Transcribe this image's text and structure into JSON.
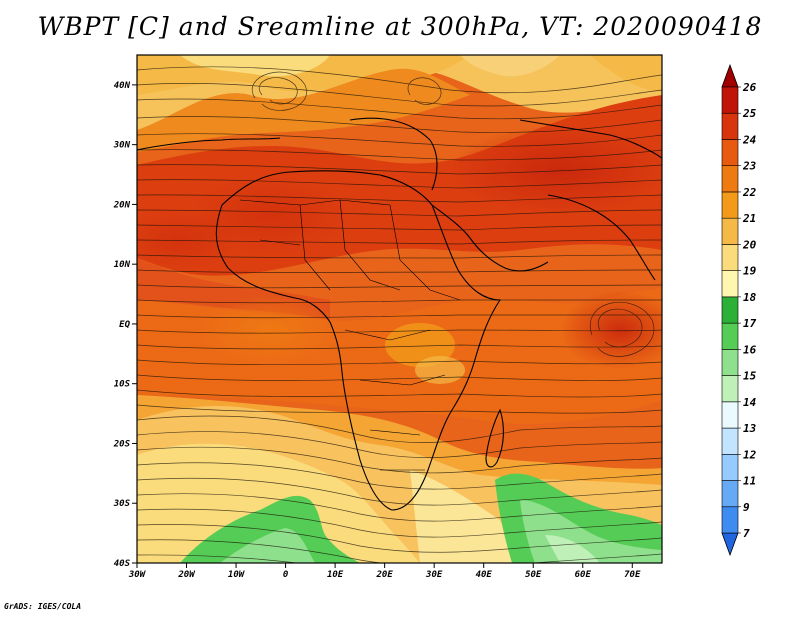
{
  "title": "WBPT [C] and Sreamline at 300hPa, VT: 2020090418",
  "credit": "GrADS: IGES/COLA",
  "map": {
    "variable": "Wet-bulb potential temperature with streamlines",
    "pressure_level": "300hPa",
    "valid_time": "2020090418",
    "lon_range": [
      -30,
      76
    ],
    "lat_range": [
      -40,
      45
    ],
    "lat_ticks": [
      {
        "value": 40,
        "label": "40N"
      },
      {
        "value": 30,
        "label": "30N"
      },
      {
        "value": 20,
        "label": "20N"
      },
      {
        "value": 10,
        "label": "10N"
      },
      {
        "value": 0,
        "label": "EQ"
      },
      {
        "value": -10,
        "label": "10S"
      },
      {
        "value": -20,
        "label": "20S"
      },
      {
        "value": -30,
        "label": "30S"
      },
      {
        "value": -40,
        "label": "40S"
      }
    ],
    "lon_ticks": [
      {
        "value": -30,
        "label": "30W"
      },
      {
        "value": -20,
        "label": "20W"
      },
      {
        "value": -10,
        "label": "10W"
      },
      {
        "value": 0,
        "label": "0"
      },
      {
        "value": 10,
        "label": "10E"
      },
      {
        "value": 20,
        "label": "20E"
      },
      {
        "value": 30,
        "label": "30E"
      },
      {
        "value": 40,
        "label": "40E"
      },
      {
        "value": 50,
        "label": "50E"
      },
      {
        "value": 60,
        "label": "60E"
      },
      {
        "value": 70,
        "label": "70E"
      }
    ]
  },
  "colorbar": {
    "colors": [
      "#1f66e0",
      "#3f8cf0",
      "#66aaf6",
      "#96cbff",
      "#c3e4ff",
      "#eafaff",
      "#bff0b8",
      "#8ee08c",
      "#55cc55",
      "#2db038",
      "#fff6b0",
      "#fadc7c",
      "#f4b946",
      "#f39a1a",
      "#ee7a12",
      "#e85a10",
      "#d8340e",
      "#c01408",
      "#a00000"
    ],
    "labels": [
      "7",
      "9",
      "11",
      "12",
      "13",
      "14",
      "15",
      "16",
      "17",
      "18",
      "19",
      "20",
      "21",
      "22",
      "23",
      "24",
      "25",
      "26"
    ]
  }
}
